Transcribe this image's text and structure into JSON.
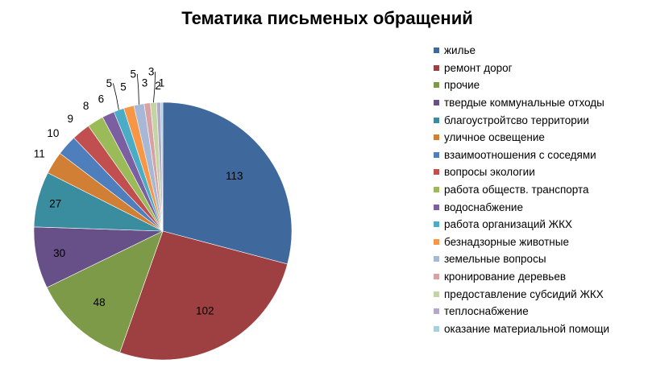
{
  "chart_data": {
    "type": "pie",
    "title": "Тематика письменых обращений",
    "legend_position": "right",
    "categories": [
      "жилье",
      "ремонт дорог",
      "прочие",
      "твердые коммунальные отходы",
      "благоустройтсво территории",
      "уличное освещение",
      "взаимоотношения  с соседями",
      "вопросы экологии",
      "работа обществ. транспорта",
      "водоснабжение",
      "работа организаций ЖКХ",
      "безнадзорные животные",
      "земельные вопросы",
      "кронирование деревьев",
      "предоставление субсидий ЖКХ",
      "теплоснабжение",
      "оказание материальной помощи"
    ],
    "values": [
      113,
      102,
      48,
      30,
      27,
      11,
      10,
      9,
      8,
      6,
      5,
      5,
      5,
      3,
      3,
      2,
      1
    ],
    "colors": [
      "#3F689D",
      "#9E4041",
      "#7D9A48",
      "#674F87",
      "#3A8C9F",
      "#D07F34",
      "#4F7EBC",
      "#C14F4F",
      "#9BBB59",
      "#7B5FA0",
      "#4BACC6",
      "#F79646",
      "#A7B8D6",
      "#D9A2A2",
      "#C3D5A4",
      "#B5A9C8",
      "#A6D0DD"
    ]
  }
}
